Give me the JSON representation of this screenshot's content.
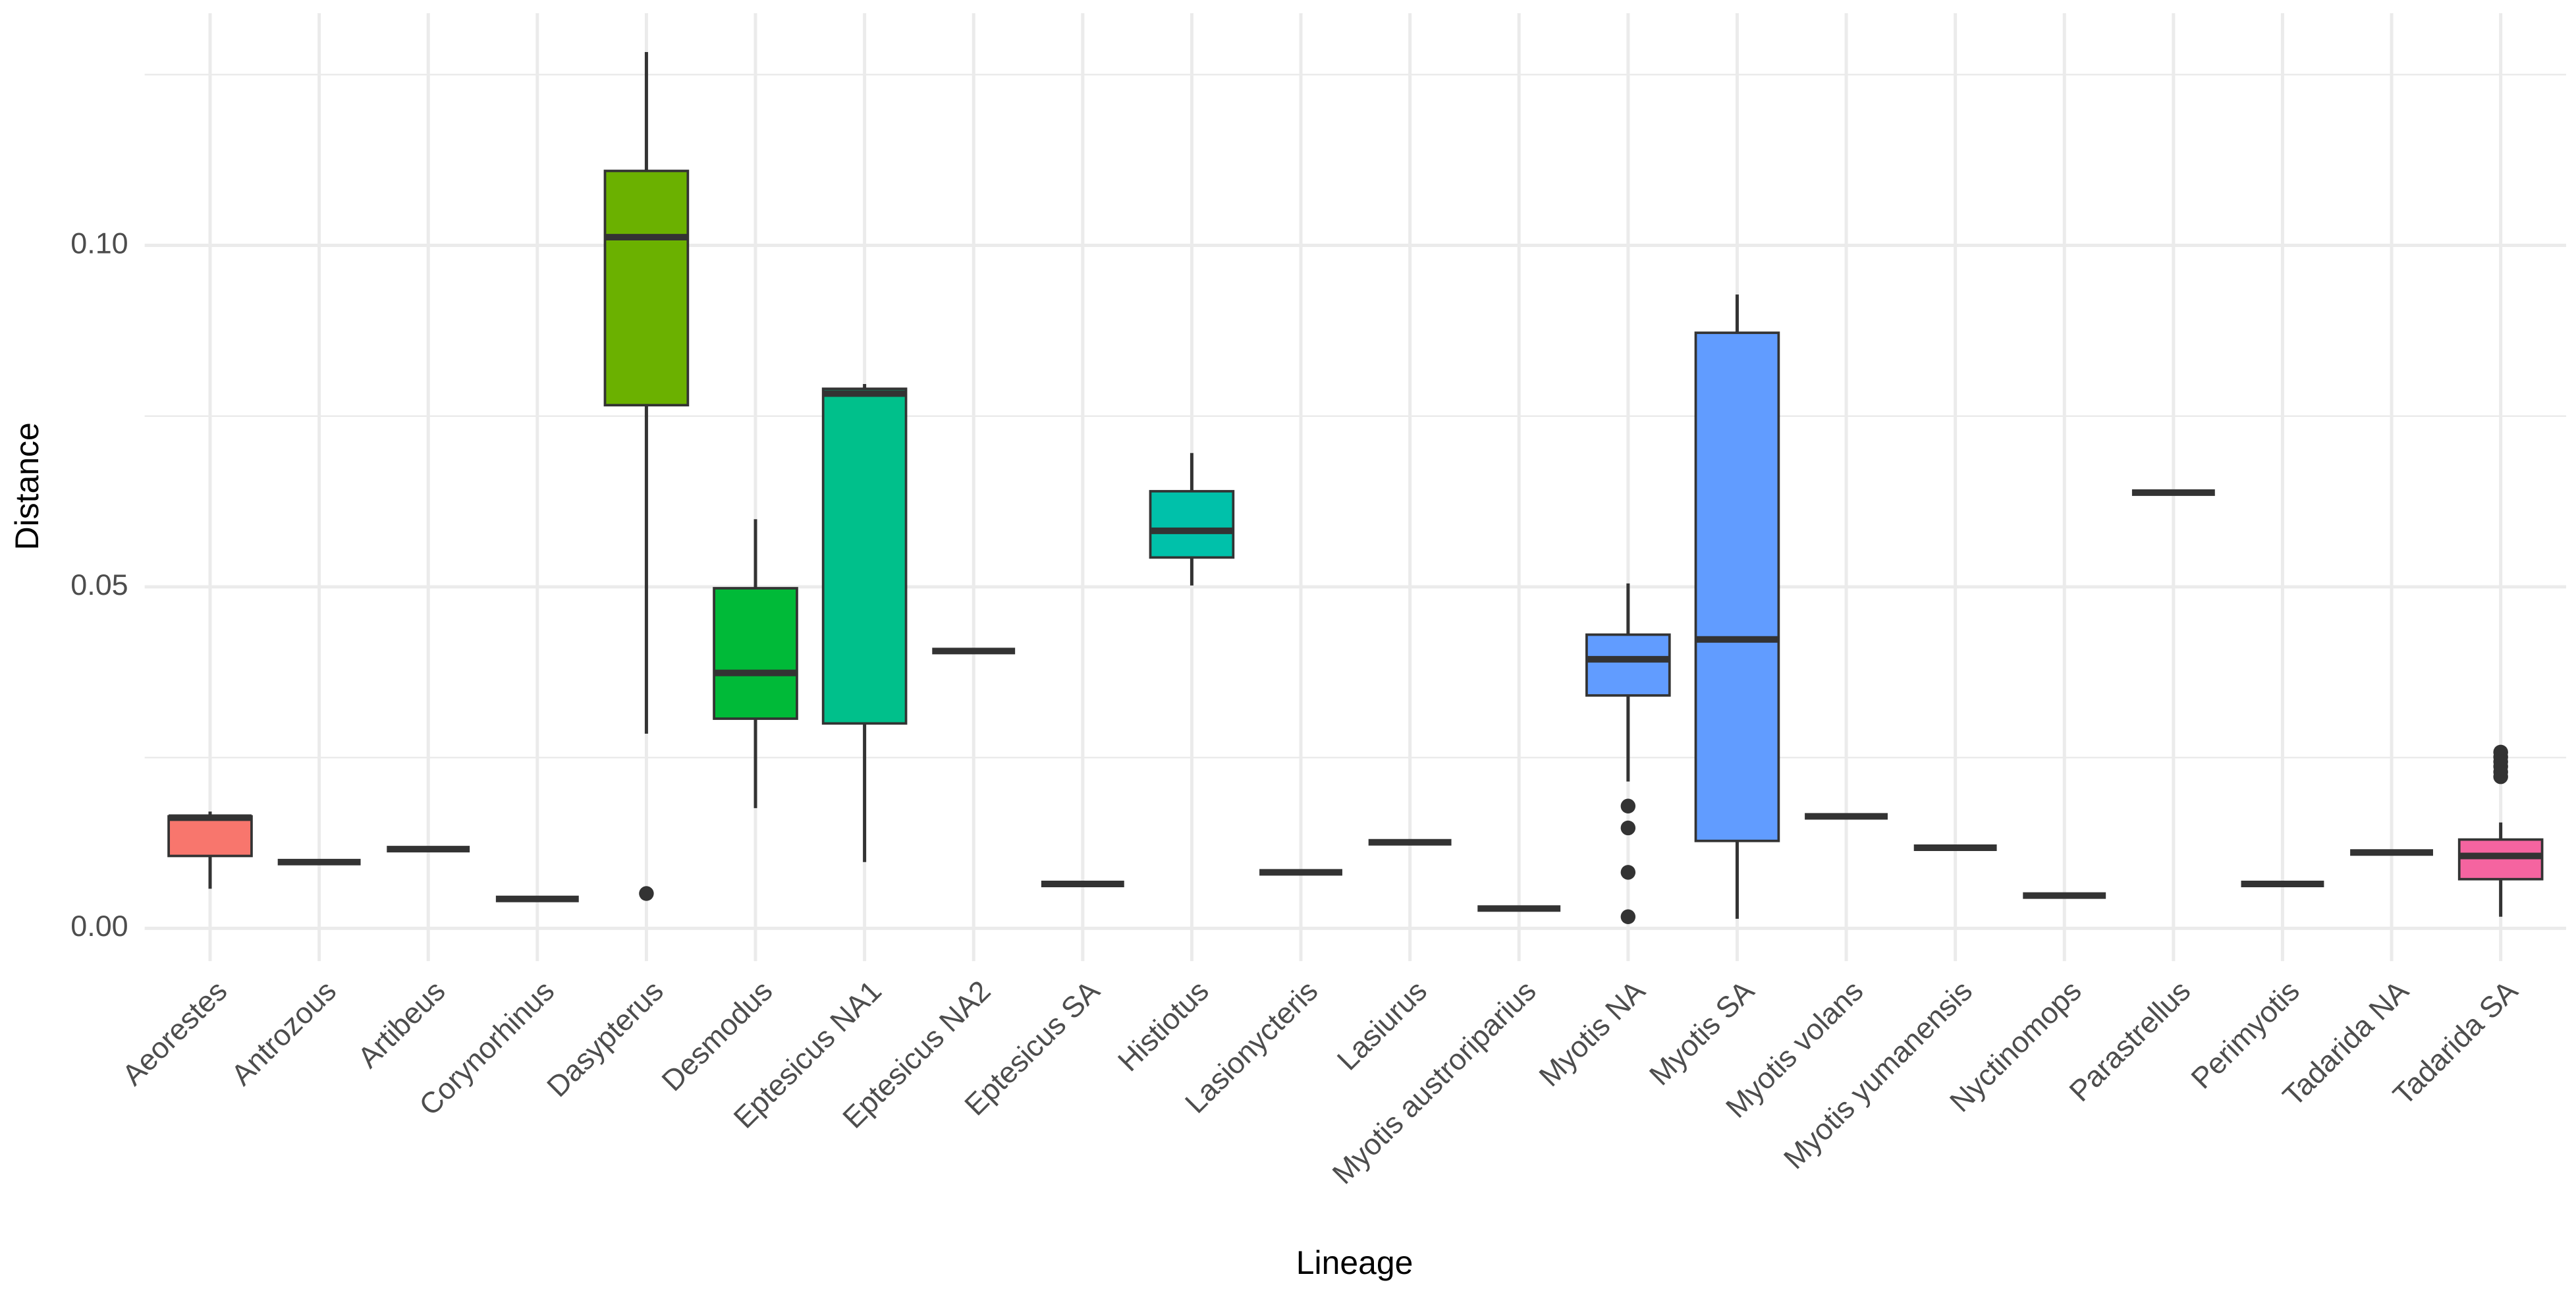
{
  "chart_data": {
    "type": "box",
    "x_label": "Lineage",
    "y_label": "Distance",
    "categories": [
      "Aeorestes",
      "Antrozous",
      "Artibeus",
      "Corynorhinus",
      "Dasypterus",
      "Desmodus",
      "Eptesicus NA1",
      "Eptesicus NA2",
      "Eptesicus SA",
      "Histiotus",
      "Lasionycteris",
      "Lasiurus",
      "Myotis austroriparius",
      "Myotis NA",
      "Myotis SA",
      "Myotis volans",
      "Myotis yumanensis",
      "Nyctinomops",
      "Parastrellus",
      "Perimyotis",
      "Tadarida NA",
      "Tadarida SA"
    ],
    "boxes": [
      {
        "min": 0.0058,
        "q1": 0.0106,
        "median": 0.0162,
        "q3": 0.0164,
        "max": 0.0171,
        "outliers": [],
        "color": "#F8766D"
      },
      {
        "min": 0.0097,
        "q1": 0.0097,
        "median": 0.0097,
        "q3": 0.0097,
        "max": 0.0097,
        "outliers": [],
        "color": "#E58700"
      },
      {
        "min": 0.0116,
        "q1": 0.0116,
        "median": 0.0116,
        "q3": 0.0116,
        "max": 0.0116,
        "outliers": [],
        "color": "#C99800"
      },
      {
        "min": 0.0043,
        "q1": 0.0043,
        "median": 0.0043,
        "q3": 0.0043,
        "max": 0.0043,
        "outliers": [],
        "color": "#A3A500"
      },
      {
        "min": 0.0285,
        "q1": 0.0766,
        "median": 0.1012,
        "q3": 0.1109,
        "max": 0.1283,
        "outliers": [
          0.0051
        ],
        "color": "#6BB100"
      },
      {
        "min": 0.0176,
        "q1": 0.0307,
        "median": 0.0374,
        "q3": 0.0498,
        "max": 0.0599,
        "outliers": [],
        "color": "#00BA38"
      },
      {
        "min": 0.0097,
        "q1": 0.03,
        "median": 0.0783,
        "q3": 0.079,
        "max": 0.0797,
        "outliers": [],
        "color": "#00C08B"
      },
      {
        "min": 0.0406,
        "q1": 0.0406,
        "median": 0.0406,
        "q3": 0.0406,
        "max": 0.0406,
        "outliers": [],
        "color": "#00C1A3"
      },
      {
        "min": 0.0065,
        "q1": 0.0065,
        "median": 0.0065,
        "q3": 0.0065,
        "max": 0.0065,
        "outliers": [],
        "color": "#00BFC4"
      },
      {
        "min": 0.0502,
        "q1": 0.0543,
        "median": 0.0582,
        "q3": 0.064,
        "max": 0.0696,
        "outliers": [],
        "color": "#00C1AA"
      },
      {
        "min": 0.0082,
        "q1": 0.0082,
        "median": 0.0082,
        "q3": 0.0082,
        "max": 0.0082,
        "outliers": [],
        "color": "#00B0F6"
      },
      {
        "min": 0.0126,
        "q1": 0.0126,
        "median": 0.0126,
        "q3": 0.0126,
        "max": 0.0126,
        "outliers": [],
        "color": "#35A2FF"
      },
      {
        "min": 0.0029,
        "q1": 0.0029,
        "median": 0.0029,
        "q3": 0.0029,
        "max": 0.0029,
        "outliers": [],
        "color": "#619CFF"
      },
      {
        "min": 0.0215,
        "q1": 0.0341,
        "median": 0.0394,
        "q3": 0.043,
        "max": 0.0505,
        "outliers": [
          0.0179,
          0.0147,
          0.0082,
          0.0017
        ],
        "color": "#619CFF"
      },
      {
        "min": 0.0014,
        "q1": 0.0128,
        "median": 0.0423,
        "q3": 0.0872,
        "max": 0.0928,
        "outliers": [],
        "color": "#619CFF"
      },
      {
        "min": 0.0164,
        "q1": 0.0164,
        "median": 0.0164,
        "q3": 0.0164,
        "max": 0.0164,
        "outliers": [],
        "color": "#9590FF"
      },
      {
        "min": 0.0118,
        "q1": 0.0118,
        "median": 0.0118,
        "q3": 0.0118,
        "max": 0.0118,
        "outliers": [],
        "color": "#C77CFF"
      },
      {
        "min": 0.0048,
        "q1": 0.0048,
        "median": 0.0048,
        "q3": 0.0048,
        "max": 0.0048,
        "outliers": [],
        "color": "#E76BF3"
      },
      {
        "min": 0.0638,
        "q1": 0.0638,
        "median": 0.0638,
        "q3": 0.0638,
        "max": 0.0638,
        "outliers": [],
        "color": "#FA62DB"
      },
      {
        "min": 0.0065,
        "q1": 0.0065,
        "median": 0.0065,
        "q3": 0.0065,
        "max": 0.0065,
        "outliers": [],
        "color": "#FF62BC"
      },
      {
        "min": 0.0111,
        "q1": 0.0111,
        "median": 0.0111,
        "q3": 0.0111,
        "max": 0.0111,
        "outliers": [],
        "color": "#FF6C91"
      },
      {
        "min": 0.0017,
        "q1": 0.0072,
        "median": 0.0106,
        "q3": 0.013,
        "max": 0.0155,
        "outliers": [
          0.0258,
          0.0251,
          0.0244,
          0.0237,
          0.0229,
          0.0222
        ],
        "color": "#F564A0"
      }
    ],
    "ylim": [
      -0.0048,
      0.134
    ],
    "yticks": [
      {
        "value": 0,
        "label": "0.00"
      },
      0.05,
      {
        "value": 0.1,
        "label": "0.10"
      }
    ],
    "minor_yticks": [
      0.025,
      0.075,
      0.125
    ],
    "grid": true
  }
}
